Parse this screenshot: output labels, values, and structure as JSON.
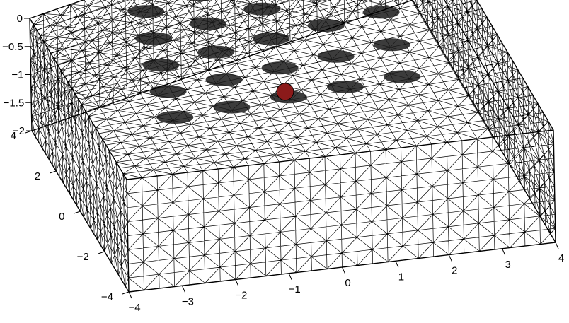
{
  "chart_data": {
    "type": "mesh3d",
    "x_ticks": [
      "−4",
      "−3",
      "−2",
      "−1",
      "0",
      "1",
      "2",
      "3",
      "4"
    ],
    "y_ticks": [
      "−4",
      "−2",
      "0",
      "2",
      "4"
    ],
    "z_ticks": [
      "0",
      "−0.5",
      "−1",
      "−1.5",
      "−2"
    ],
    "x_range": [
      -4,
      4
    ],
    "y_range": [
      -4,
      4
    ],
    "z_range": [
      -2,
      0
    ],
    "mesh_color": "#000000",
    "target_color": "#8b1a1a",
    "electrode_count": 25
  }
}
